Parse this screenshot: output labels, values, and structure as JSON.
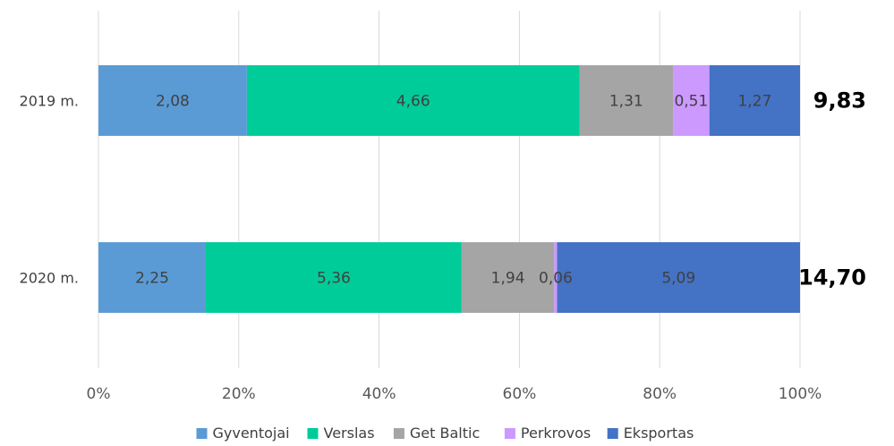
{
  "chart_data": {
    "type": "bar",
    "orientation": "horizontal",
    "stacked": "percent",
    "categories": [
      "2019 m.",
      "2020 m."
    ],
    "series": [
      {
        "name": "Gyventojai",
        "values": [
          2.08,
          2.25
        ],
        "labels": [
          "2,08",
          "2,25"
        ],
        "color": "#5b9bd5"
      },
      {
        "name": "Verslas",
        "values": [
          4.66,
          5.36
        ],
        "labels": [
          "4,66",
          "5,36"
        ],
        "color": "#00cc99"
      },
      {
        "name": "Get Baltic",
        "values": [
          1.31,
          1.94
        ],
        "labels": [
          "1,31",
          "1,94"
        ],
        "color": "#a5a5a5"
      },
      {
        "name": "Perkrovos",
        "values": [
          0.51,
          0.06
        ],
        "labels": [
          "0,51",
          "0,06"
        ],
        "color": "#cc99ff"
      },
      {
        "name": "Eksportas",
        "values": [
          1.27,
          5.09
        ],
        "labels": [
          "1,27",
          "5,09"
        ],
        "color": "#4472c4"
      }
    ],
    "totals": [
      "9,83",
      "14,70"
    ],
    "x_ticks": [
      "0%",
      "20%",
      "40%",
      "60%",
      "80%",
      "100%"
    ],
    "xlim": [
      0,
      100
    ],
    "grid": true,
    "legend_position": "bottom"
  }
}
